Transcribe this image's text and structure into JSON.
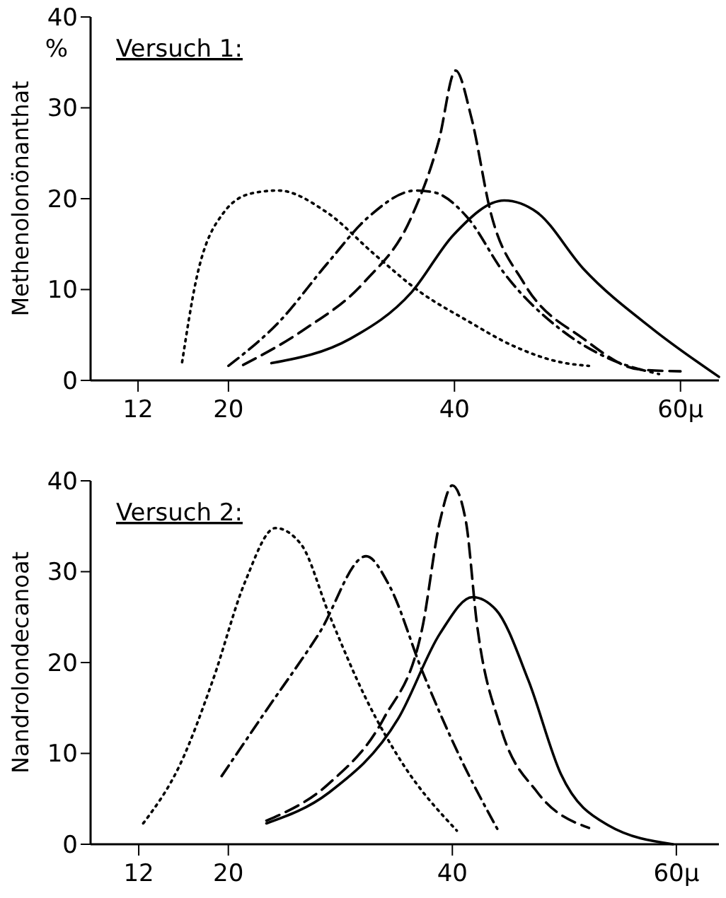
{
  "chart_data": [
    {
      "type": "line",
      "ylabel": "Methenolonönanthat",
      "annotations": [
        "Versuch 1:",
        "%"
      ],
      "xlim": [
        7.8,
        63.4
      ],
      "xticks": [
        12,
        20,
        40,
        {
          "value": 60,
          "label": "60μ"
        }
      ],
      "ylim": [
        0,
        40
      ],
      "yticks": [
        0,
        10,
        20,
        30,
        40
      ],
      "grid": false,
      "marker": "none",
      "series": [
        {
          "color": "#000000",
          "line_style": "dotted",
          "x": [
            15.9,
            17.1,
            19.6,
            22.1,
            24.4,
            28.7,
            32.9,
            37.0,
            41.1,
            45.2,
            49.4,
            51.9
          ],
          "values": [
            2.0,
            10.8,
            18.5,
            20.6,
            20.9,
            18.5,
            13.9,
            9.7,
            6.6,
            3.8,
            2.0,
            1.6
          ]
        },
        {
          "color": "#000000",
          "line_style": "dashdot",
          "x": [
            20,
            24.6,
            28.7,
            32.4,
            36.6,
            38.2,
            41.1,
            44.4,
            49.4,
            53.5,
            58.1
          ],
          "values": [
            1.6,
            6.6,
            12.8,
            18,
            20.9,
            20.7,
            18,
            11.8,
            5.6,
            2.5,
            0.7
          ]
        },
        {
          "color": "#000000",
          "line_style": "dashed",
          "x": [
            21.3,
            26.7,
            32,
            36.2,
            38.6,
            40.1,
            41.5,
            43.2,
            46.1,
            51.4,
            56.4,
            60
          ],
          "values": [
            1.7,
            5.6,
            10.8,
            18,
            26.3,
            34.1,
            28.9,
            18.5,
            10.8,
            4.6,
            1.2,
            1.0
          ]
        },
        {
          "color": "#000000",
          "line_style": "solid",
          "x": [
            23.8,
            30.8,
            36.2,
            39.9,
            44.4,
            47.3,
            51.4,
            57.6,
            63.4
          ],
          "values": [
            1.9,
            4.6,
            9.7,
            16,
            19.8,
            18.5,
            12.3,
            5.6,
            0.4
          ]
        }
      ]
    },
    {
      "type": "line",
      "ylabel": "Nandrolondecanoat",
      "annotations": [
        "Versuch 2:"
      ],
      "xlim": [
        7.7,
        63.8
      ],
      "xticks": [
        12,
        20,
        40,
        {
          "value": 60,
          "label": "60μ"
        }
      ],
      "ylim": [
        0,
        40
      ],
      "yticks": [
        0,
        10,
        20,
        30,
        40
      ],
      "grid": false,
      "marker": "none",
      "series": [
        {
          "color": "#000000",
          "line_style": "dotted",
          "x": [
            12.4,
            15.7,
            18.6,
            21.5,
            24.2,
            26.5,
            29,
            32.3,
            35.6,
            40.4
          ],
          "values": [
            2.3,
            8.8,
            18,
            28.9,
            34.8,
            33,
            25.3,
            16,
            8.8,
            1.5
          ]
        },
        {
          "color": "#000000",
          "line_style": "dashdot",
          "x": [
            19.4,
            23.2,
            28.1,
            32.3,
            34.4,
            37.3,
            40.6,
            44.1
          ],
          "values": [
            7.5,
            14.4,
            23.2,
            31.7,
            28.4,
            19.1,
            9.8,
            1.5
          ]
        },
        {
          "color": "#000000",
          "line_style": "dashed",
          "x": [
            23.4,
            29,
            33.9,
            37.3,
            38.9,
            40,
            41.2,
            42.2,
            44.3,
            47.6,
            52.2
          ],
          "values": [
            2.6,
            6.7,
            13.9,
            23.7,
            35.6,
            39.5,
            35.6,
            24.2,
            12.9,
            5.7,
            1.8
          ]
        },
        {
          "color": "#000000",
          "line_style": "solid",
          "x": [
            23.4,
            29,
            35.2,
            38.9,
            41.8,
            43.9,
            46.8,
            49.7,
            53.9,
            59.7
          ],
          "values": [
            2.3,
            5.7,
            13.9,
            23.2,
            27.2,
            25.8,
            18,
            7.7,
            2.1,
            0
          ]
        }
      ]
    }
  ]
}
